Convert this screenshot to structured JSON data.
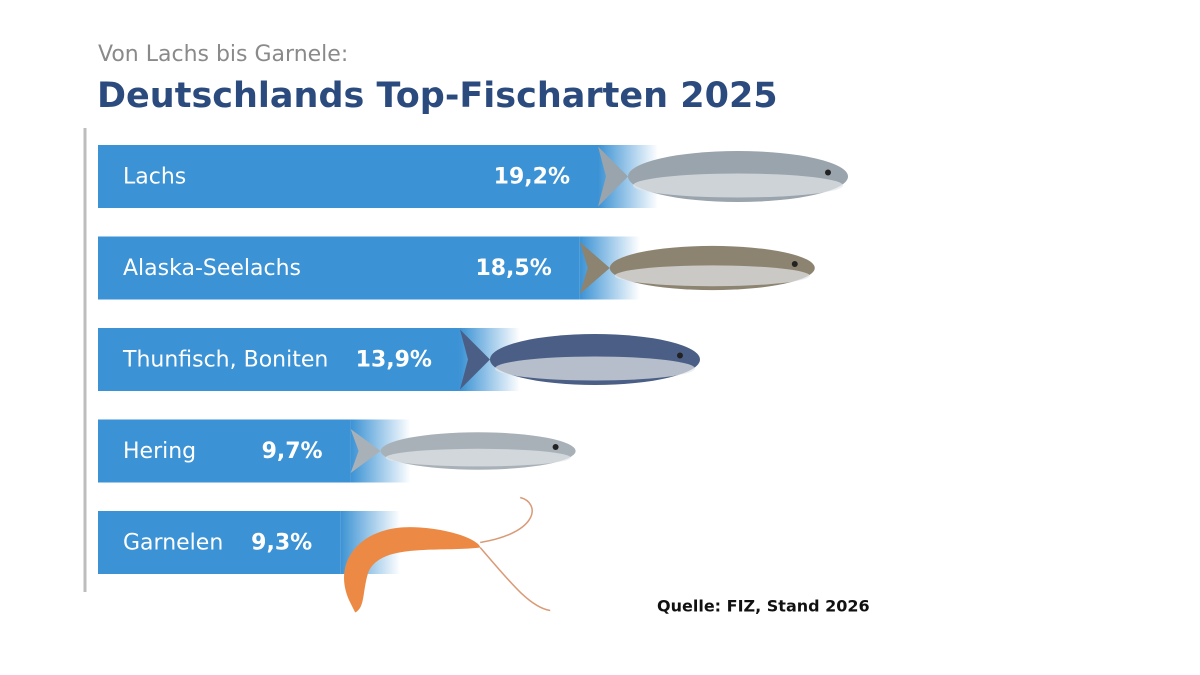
{
  "chart_data": {
    "type": "bar",
    "orientation": "horizontal",
    "subtitle": "Von Lachs bis Garnele:",
    "title": "Deutschlands Top-Fischarten 2025",
    "categories": [
      "Lachs",
      "Alaska-Seelachs",
      "Thunfisch, Boniten",
      "Hering",
      "Garnelen"
    ],
    "values": [
      19.2,
      18.5,
      13.9,
      9.7,
      9.3
    ],
    "value_labels": [
      "19,2%",
      "18,5%",
      "13,9%",
      "9,7%",
      "9,3%"
    ],
    "color": "#3b92d4",
    "source": "Quelle: FIZ, Stand 2026"
  }
}
